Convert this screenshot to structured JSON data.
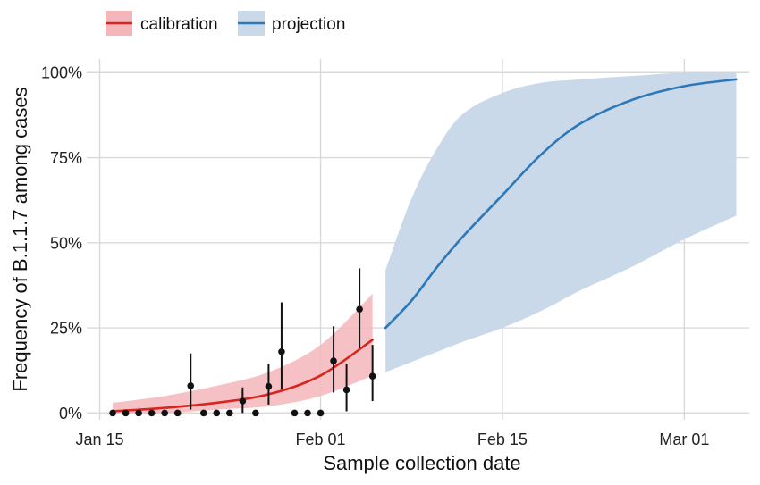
{
  "chart_data": {
    "type": "line",
    "title": "",
    "xlabel": "Sample collection date",
    "ylabel": "Frequency of B.1.1.7 among cases",
    "x_ticks": [
      {
        "date": "2021-01-15",
        "label": "Jan 15"
      },
      {
        "date": "2021-02-01",
        "label": "Feb 01"
      },
      {
        "date": "2021-02-15",
        "label": "Feb 15"
      },
      {
        "date": "2021-03-01",
        "label": "Mar 01"
      }
    ],
    "y_ticks": [
      {
        "value": 0,
        "label": "0%"
      },
      {
        "value": 0.25,
        "label": "25%"
      },
      {
        "value": 0.5,
        "label": "50%"
      },
      {
        "value": 0.75,
        "label": "75%"
      },
      {
        "value": 1.0,
        "label": "100%"
      }
    ],
    "xlim": [
      "2021-01-14",
      "2021-03-06"
    ],
    "ylim": [
      -0.02,
      1.04
    ],
    "grid": true,
    "legend_position": "top-left",
    "colors": {
      "calibration_line": "#d7261e",
      "calibration_band": "#f4b6bb",
      "projection_line": "#2f78b7",
      "projection_band": "#c9d9ea",
      "points": "#111111"
    },
    "series": [
      {
        "name": "calibration",
        "kind": "line_with_band",
        "x": [
          "2021-01-16",
          "2021-01-20",
          "2021-01-24",
          "2021-01-28",
          "2021-02-01",
          "2021-02-05"
        ],
        "y": [
          0.005,
          0.015,
          0.03,
          0.055,
          0.11,
          0.215
        ],
        "lower": [
          0.0,
          0.0,
          0.01,
          0.02,
          0.05,
          0.11
        ],
        "upper": [
          0.03,
          0.05,
          0.08,
          0.12,
          0.2,
          0.35
        ]
      },
      {
        "name": "projection",
        "kind": "line_with_band",
        "x": [
          "2021-02-06",
          "2021-02-08",
          "2021-02-10",
          "2021-02-12",
          "2021-02-15",
          "2021-02-18",
          "2021-02-21",
          "2021-02-25",
          "2021-03-01",
          "2021-03-05"
        ],
        "y": [
          0.25,
          0.33,
          0.43,
          0.52,
          0.64,
          0.76,
          0.85,
          0.92,
          0.96,
          0.98
        ],
        "lower": [
          0.12,
          0.15,
          0.18,
          0.21,
          0.25,
          0.3,
          0.36,
          0.43,
          0.51,
          0.58
        ],
        "upper": [
          0.42,
          0.63,
          0.78,
          0.88,
          0.94,
          0.97,
          0.98,
          0.99,
          1.0,
          1.0
        ]
      },
      {
        "name": "",
        "kind": "points_with_errorbars",
        "points": [
          {
            "x": "2021-01-16",
            "y": 0.0,
            "lo": 0.0,
            "hi": 0.0
          },
          {
            "x": "2021-01-17",
            "y": 0.0,
            "lo": 0.0,
            "hi": 0.0
          },
          {
            "x": "2021-01-18",
            "y": 0.0,
            "lo": 0.0,
            "hi": 0.0
          },
          {
            "x": "2021-01-19",
            "y": 0.0,
            "lo": 0.0,
            "hi": 0.0
          },
          {
            "x": "2021-01-20",
            "y": 0.0,
            "lo": 0.0,
            "hi": 0.0
          },
          {
            "x": "2021-01-21",
            "y": 0.0,
            "lo": 0.0,
            "hi": 0.0
          },
          {
            "x": "2021-01-22",
            "y": 0.08,
            "lo": 0.01,
            "hi": 0.175
          },
          {
            "x": "2021-01-23",
            "y": 0.0,
            "lo": 0.0,
            "hi": 0.0
          },
          {
            "x": "2021-01-24",
            "y": 0.0,
            "lo": 0.0,
            "hi": 0.0
          },
          {
            "x": "2021-01-25",
            "y": 0.0,
            "lo": 0.0,
            "hi": 0.0
          },
          {
            "x": "2021-01-26",
            "y": 0.035,
            "lo": 0.0,
            "hi": 0.075
          },
          {
            "x": "2021-01-27",
            "y": 0.0,
            "lo": 0.0,
            "hi": 0.0
          },
          {
            "x": "2021-01-28",
            "y": 0.078,
            "lo": 0.025,
            "hi": 0.145
          },
          {
            "x": "2021-01-29",
            "y": 0.18,
            "lo": 0.07,
            "hi": 0.325
          },
          {
            "x": "2021-01-30",
            "y": 0.0,
            "lo": 0.0,
            "hi": 0.0
          },
          {
            "x": "2021-01-31",
            "y": 0.0,
            "lo": 0.0,
            "hi": 0.0
          },
          {
            "x": "2021-02-01",
            "y": 0.0,
            "lo": 0.0,
            "hi": 0.0
          },
          {
            "x": "2021-02-02",
            "y": 0.153,
            "lo": 0.06,
            "hi": 0.255
          },
          {
            "x": "2021-02-03",
            "y": 0.068,
            "lo": 0.005,
            "hi": 0.145
          },
          {
            "x": "2021-02-04",
            "y": 0.305,
            "lo": 0.19,
            "hi": 0.425
          },
          {
            "x": "2021-02-05",
            "y": 0.108,
            "lo": 0.035,
            "hi": 0.2
          }
        ]
      }
    ]
  },
  "legend": [
    {
      "label": "calibration",
      "series": "calibration"
    },
    {
      "label": "projection",
      "series": "projection"
    }
  ]
}
